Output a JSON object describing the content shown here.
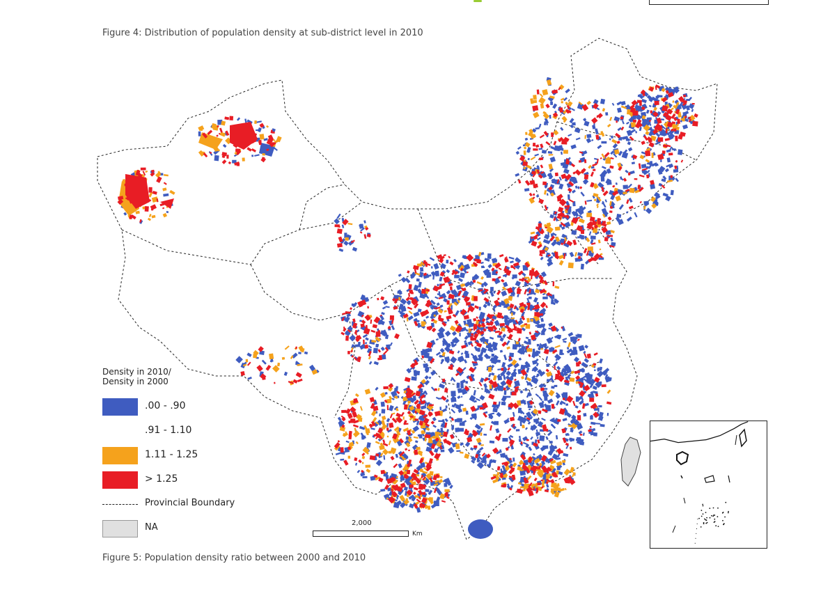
{
  "captions": {
    "top": "Figure 4: Distribution of population density at sub-district level in 2010",
    "bottom": "Figure 5: Population density ratio between 2000 and 2010"
  },
  "legend": {
    "title_line1": "Density in 2010/",
    "title_line2": "Density in 2000",
    "classes": [
      {
        "label": ".00 - .90",
        "color": "#3f5cc0"
      },
      {
        "label": ".91 - 1.10",
        "color": "#ffffff"
      },
      {
        "label": "1.11 - 1.25",
        "color": "#f5a21c"
      },
      {
        "label": "> 1.25",
        "color": "#e81d25"
      }
    ],
    "boundary_label": "Provincial Boundary",
    "na_label": "NA",
    "na_color": "#e0e0e0"
  },
  "scale": {
    "distance": "2,000",
    "unit": "Km"
  }
}
